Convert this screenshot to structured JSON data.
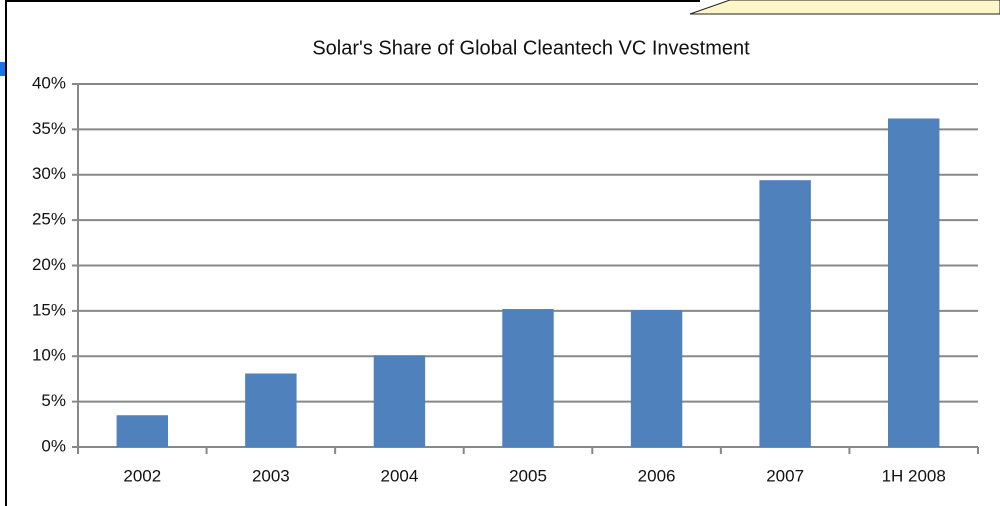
{
  "chart_data": {
    "type": "bar",
    "title": "Solar's Share of Global Cleantech VC Investment",
    "categories": [
      "2002",
      "2003",
      "2004",
      "2005",
      "2006",
      "2007",
      "1H 2008"
    ],
    "values": [
      3.5,
      8.1,
      10.1,
      15.2,
      15.1,
      29.4,
      36.2
    ],
    "color": "#4f81bd",
    "ylim": [
      0,
      40
    ],
    "yticks": [
      {
        "value": 0,
        "label": "0%"
      },
      {
        "value": 5,
        "label": "5%"
      },
      {
        "value": 10,
        "label": "10%"
      },
      {
        "value": 15,
        "label": "15%"
      },
      {
        "value": 20,
        "label": "20%"
      },
      {
        "value": 25,
        "label": "25%"
      },
      {
        "value": 30,
        "label": "30%"
      },
      {
        "value": 35,
        "label": "35%"
      },
      {
        "value": 40,
        "label": "40%"
      }
    ],
    "grid": true
  }
}
